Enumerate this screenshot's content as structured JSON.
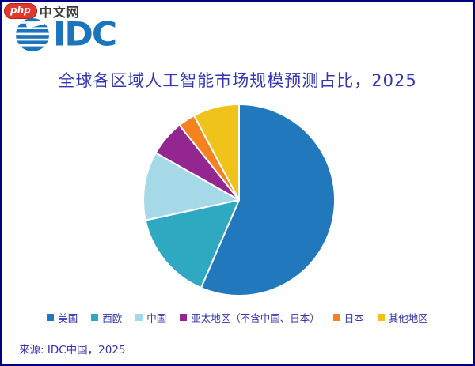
{
  "watermark": {
    "badge": "php",
    "text": "中文网"
  },
  "logo": {
    "text": "IDC"
  },
  "title": "全球各区域人工智能市场规模预测占比，2025",
  "source": "来源: IDC中国，2025",
  "colors": {
    "title_text": "#3535b5",
    "legend_text": "#3333ae",
    "page_border": "#000080",
    "logo_blue": "#1b75bc",
    "watermark_red": "#e2372b"
  },
  "chart_data": {
    "type": "pie",
    "title": "全球各区域人工智能市场规模预测占比，2025",
    "start_angle_deg": 0,
    "direction": "clockwise",
    "labels": [
      "美国",
      "西欧",
      "中国",
      "亚太地区（不含中国、日本）",
      "日本",
      "其他地区"
    ],
    "values_percent": [
      56.5,
      15.1,
      11.6,
      6.1,
      2.9,
      7.8
    ],
    "colors": [
      "#2278bc",
      "#2fa8c2",
      "#a5d9e8",
      "#93278f",
      "#f58220",
      "#efc319"
    ],
    "separator_color": "#ffffff",
    "legend_position": "bottom",
    "source": "来源: IDC中国，2025"
  }
}
